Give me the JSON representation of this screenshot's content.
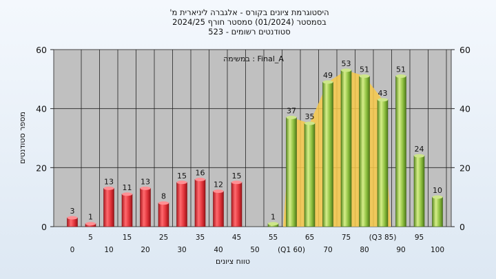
{
  "chart_data": {
    "type": "bar",
    "title_lines": [
      "היסטוגרמת ציונים בקורס - אלגברה ליניארית מ'",
      "בסמסטר  (01/2024)  סמסטר חורף 2024/25",
      "סטודנטים רשומים - 523"
    ],
    "annotation": "במשימה : Final_A",
    "xlabel": "טווח ציונים",
    "ylabel": "מספר סטודנטים",
    "ylim": [
      0,
      60
    ],
    "yticks": [
      0,
      20,
      40,
      60
    ],
    "grid": true,
    "x_tick_labels_lower": [
      "0",
      "10",
      "20",
      "30",
      "40",
      "50",
      "(Q1 60)",
      "70",
      "80",
      "90",
      "100"
    ],
    "x_tick_labels_upper": [
      "5",
      "15",
      "25",
      "35",
      "45",
      "55",
      "65",
      "75",
      "(Q3 85)",
      "95"
    ],
    "bars": [
      {
        "bin": 0,
        "value": 3
      },
      {
        "bin": 5,
        "value": 1
      },
      {
        "bin": 10,
        "value": 13
      },
      {
        "bin": 15,
        "value": 11
      },
      {
        "bin": 20,
        "value": 13
      },
      {
        "bin": 25,
        "value": 8
      },
      {
        "bin": 30,
        "value": 15
      },
      {
        "bin": 35,
        "value": 16
      },
      {
        "bin": 40,
        "value": 12
      },
      {
        "bin": 45,
        "value": 15
      },
      {
        "bin": 50,
        "value": 0
      },
      {
        "bin": 55,
        "value": 1
      },
      {
        "bin": 60,
        "value": 37
      },
      {
        "bin": 65,
        "value": 35
      },
      {
        "bin": 70,
        "value": 49
      },
      {
        "bin": 75,
        "value": 53
      },
      {
        "bin": 80,
        "value": 51
      },
      {
        "bin": 85,
        "value": 43
      },
      {
        "bin": 90,
        "value": 51
      },
      {
        "bin": 95,
        "value": 24
      },
      {
        "bin": 100,
        "value": 10
      }
    ],
    "pass_threshold": 55,
    "iqr_range": [
      60,
      85
    ],
    "colors": {
      "fail_bar": "#e0333a",
      "pass_bar": "#8dbf3f",
      "iqr_fill": "#f7c94a",
      "plot_bg": "#c0c0c0"
    }
  }
}
